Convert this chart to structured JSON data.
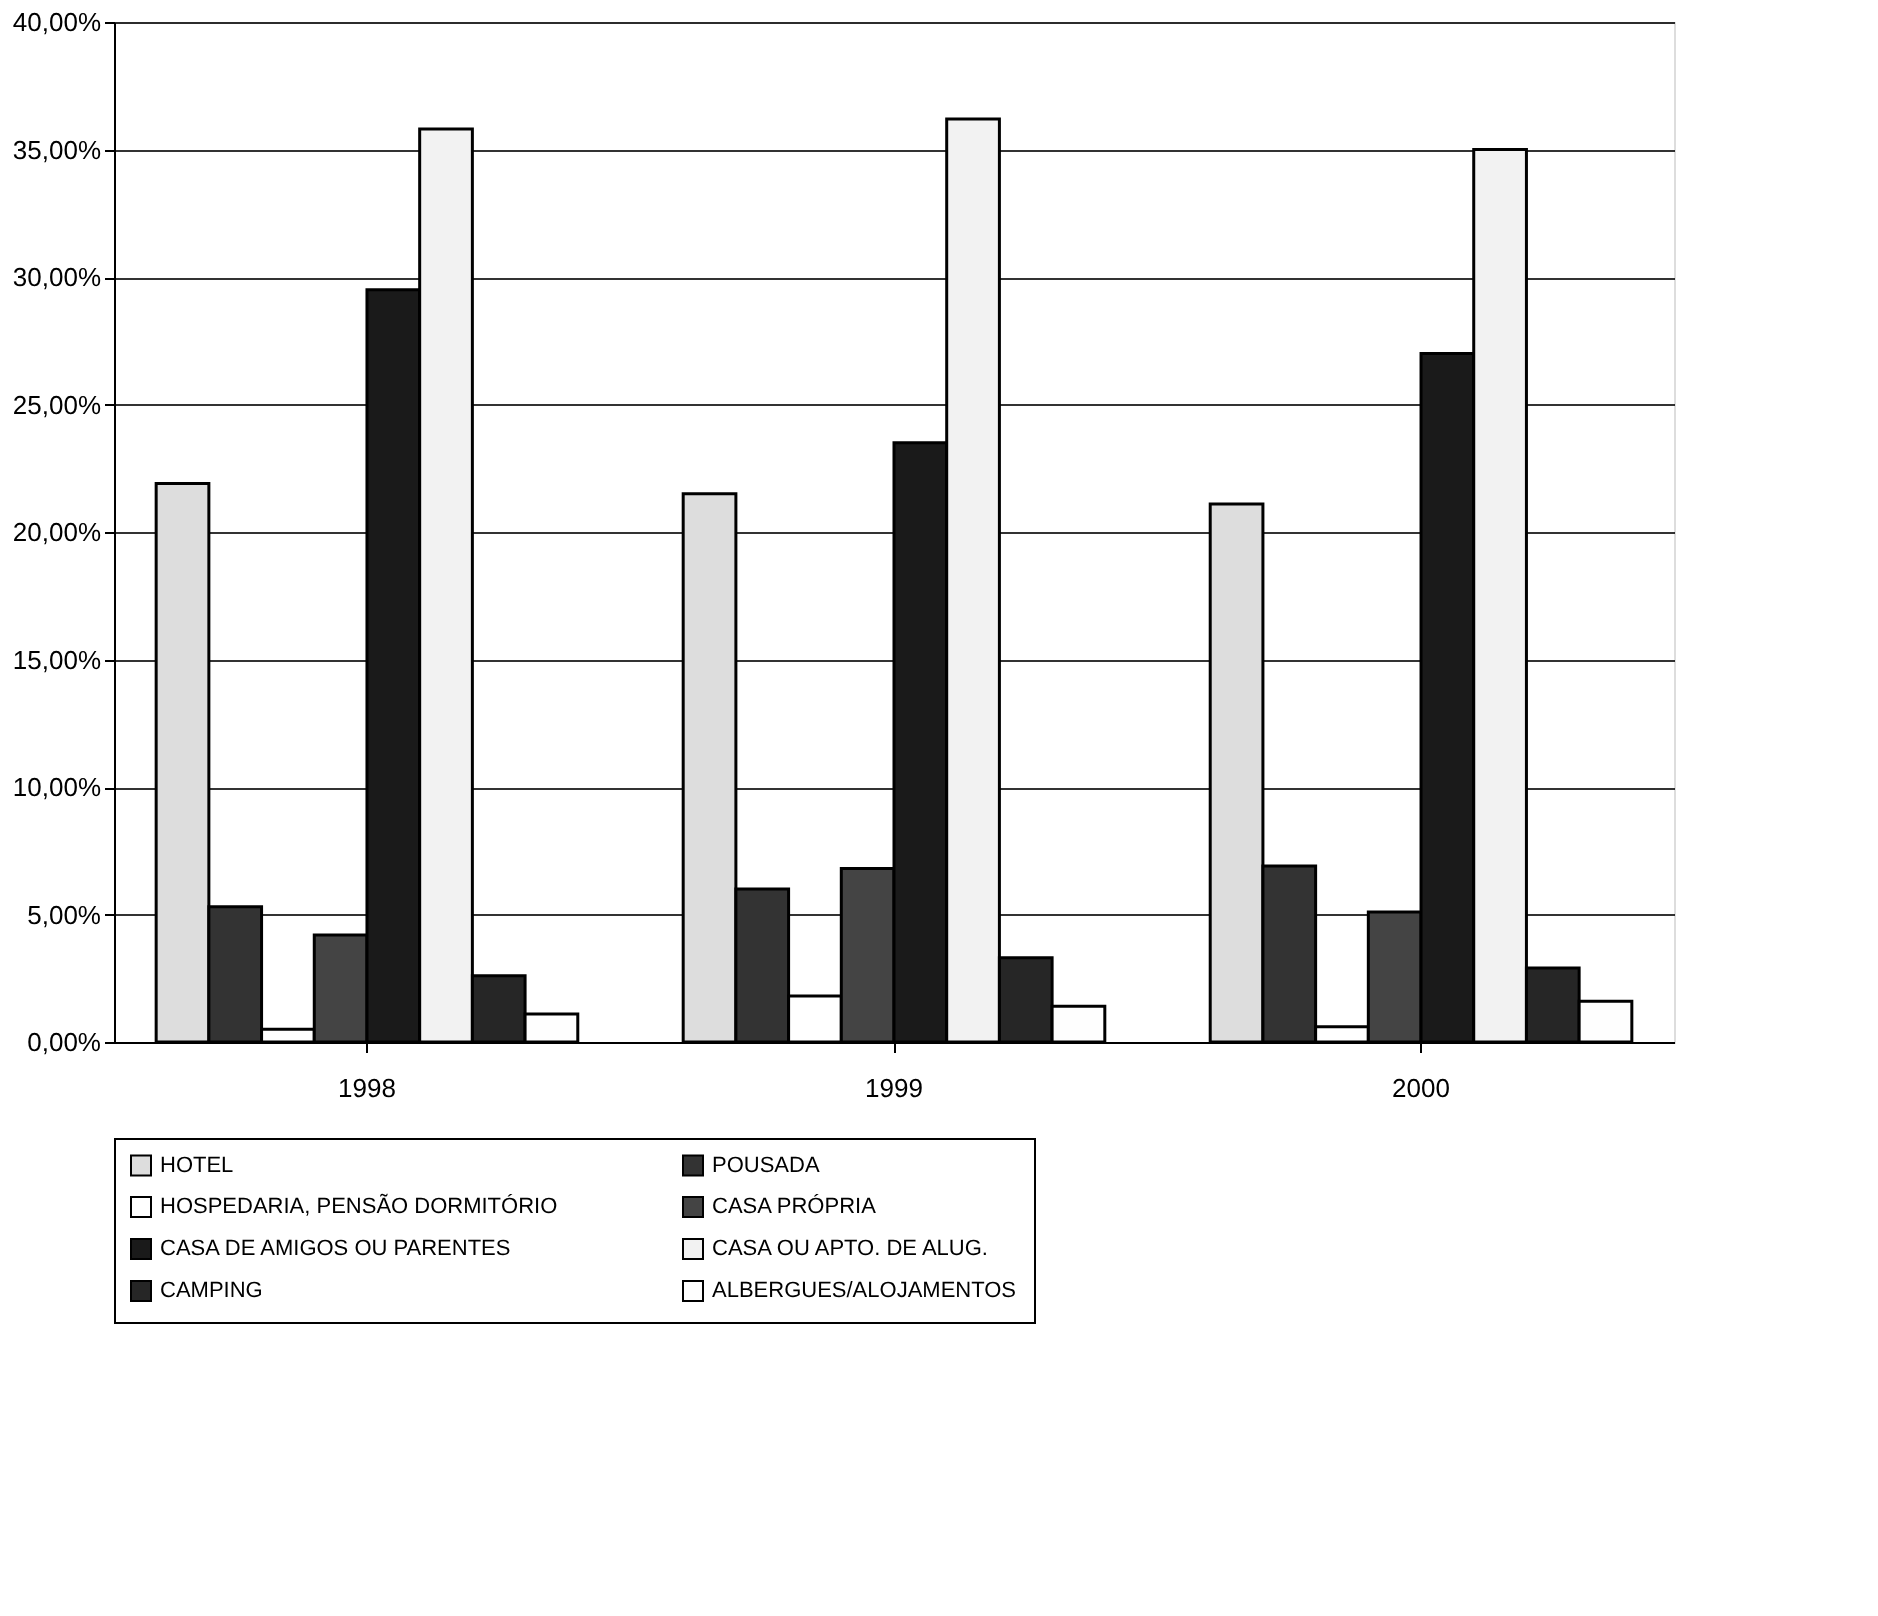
{
  "chart_data": {
    "type": "bar",
    "categories": [
      "1998",
      "1999",
      "2000"
    ],
    "series": [
      {
        "name": "HOTEL",
        "color": "#dddddd",
        "values": [
          21.9,
          21.5,
          21.1
        ]
      },
      {
        "name": "POUSADA",
        "color": "#333333",
        "values": [
          5.3,
          6.0,
          6.9
        ]
      },
      {
        "name": "HOSPEDARIA, PENSÃO DORMITÓRIO",
        "color": "#ffffff",
        "values": [
          0.5,
          1.8,
          0.6
        ]
      },
      {
        "name": "CASA PRÓPRIA",
        "color": "#444444",
        "values": [
          4.2,
          6.8,
          5.1
        ]
      },
      {
        "name": "CASA DE AMIGOS OU PARENTES",
        "color": "#1a1a1a",
        "values": [
          29.5,
          23.5,
          27.0
        ]
      },
      {
        "name": "CASA OU APTO. DE ALUG.",
        "color": "#f2f2f2",
        "values": [
          35.8,
          36.2,
          35.0
        ]
      },
      {
        "name": "CAMPING",
        "color": "#262626",
        "values": [
          2.6,
          3.3,
          2.9
        ]
      },
      {
        "name": "ALBERGUES/ALOJAMENTOS",
        "color": "#fefefe",
        "values": [
          1.1,
          1.4,
          1.6
        ]
      }
    ],
    "ylim": [
      0,
      40
    ],
    "yticks": [
      {
        "value": 0,
        "label": "0,00%"
      },
      {
        "value": 5,
        "label": "5,00%"
      },
      {
        "value": 10,
        "label": "10,00%"
      },
      {
        "value": 15,
        "label": "15,00%"
      },
      {
        "value": 20,
        "label": "20,00%"
      },
      {
        "value": 25,
        "label": "25,00%"
      },
      {
        "value": 30,
        "label": "30,00%"
      },
      {
        "value": 35,
        "label": "35,00%"
      },
      {
        "value": 40,
        "label": "40,00%"
      }
    ],
    "grid": "y",
    "legend": "bottom"
  }
}
